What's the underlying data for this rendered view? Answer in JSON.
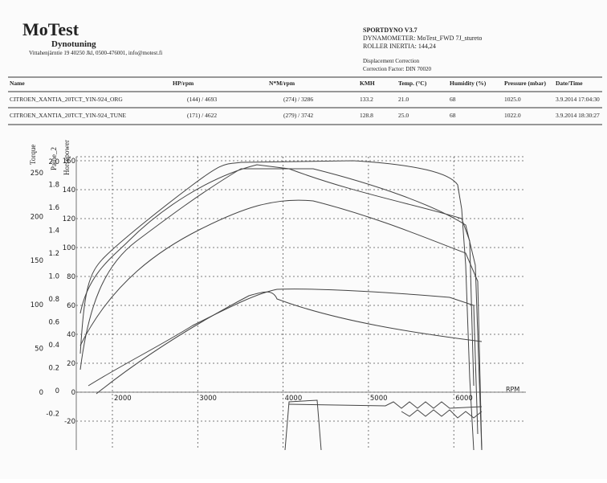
{
  "header": {
    "brand": "MoTest",
    "subtitle": "Dynotuning",
    "address": "Vittahenjärntie 19 40250 Jkl, 0500-476001, info@motest.fi"
  },
  "info": {
    "software": "SPORTDYNO V3.7",
    "dynamometer": "DYNAMOMETER: MoTest_FWD 7J_stureto",
    "inertia": "ROLLER INERTIA: 144,24",
    "correction": "Displacement Correction",
    "factor": "Correction Factor: DIN 70020"
  },
  "table": {
    "columns": [
      "Name",
      "HP/rpm",
      "N*M/rpm",
      "KMH",
      "Temp. (°C)",
      "Humidity (%)",
      "Pressure (mbar)",
      "Date/Time"
    ],
    "rows": [
      [
        "CITROEN_XANTIA_20TCT_YIN-924_ORG",
        "(144) / 4693",
        "(274) / 3286",
        "133.2",
        "21.0",
        "68",
        "1025.0",
        "3.9.2014 17:04:30"
      ],
      [
        "CITROEN_XANTIA_20TCT_YIN-924_TUNE",
        "(171) / 4622",
        "(279) / 3742",
        "128.8",
        "25.0",
        "68",
        "1022.0",
        "3.9.2014 18:30:27"
      ]
    ]
  },
  "graph": {
    "torque_label": "Torque",
    "pressure_label": "Paine_2",
    "hp_label": "Horsepower",
    "x_label": "RPM",
    "torque_ticks": [
      "250",
      "200",
      "150",
      "100",
      "50",
      "0"
    ],
    "pressure_ticks": [
      "2.0",
      "1.8",
      "1.6",
      "1.4",
      "1.2",
      "1.0",
      "0.8",
      "0.6",
      "0.4",
      "0.2",
      "0",
      "-0.2"
    ],
    "hp_ticks": [
      "160",
      "140",
      "120",
      "100",
      "80",
      "60",
      "40",
      "20",
      "0",
      "-20"
    ],
    "rpm_ticks": [
      "2000",
      "3000",
      "4000",
      "5000",
      "6000"
    ]
  }
}
